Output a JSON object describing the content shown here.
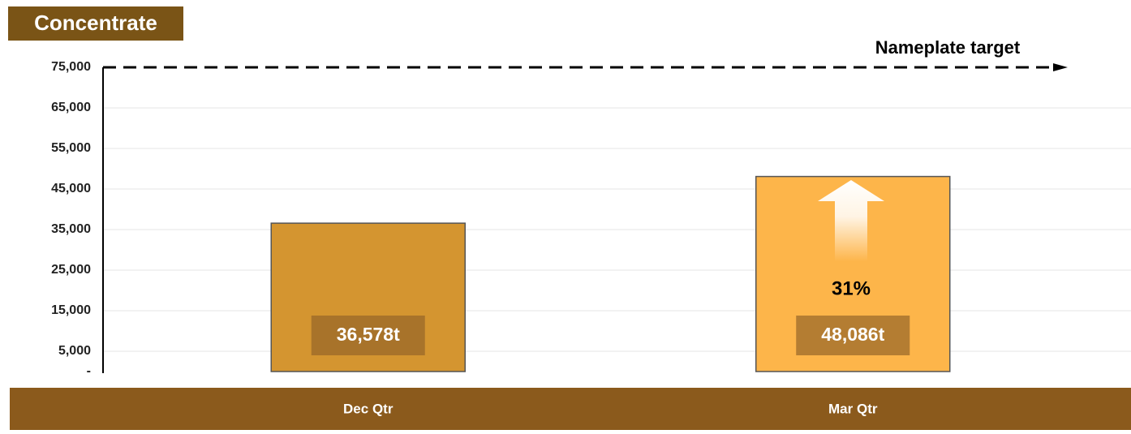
{
  "chart_data": {
    "type": "bar",
    "title": "Concentrate",
    "categories": [
      "Dec Qtr",
      "Mar Qtr"
    ],
    "values": [
      36578,
      48086
    ],
    "value_labels": [
      "36,578t",
      "48,086t"
    ],
    "colors": [
      "#d49530",
      "#fdb54a"
    ],
    "ylim": [
      0,
      75000
    ],
    "yticks": [
      {
        "value": 0,
        "label": "-"
      },
      {
        "value": 5000,
        "label": "5,000"
      },
      {
        "value": 15000,
        "label": "15,000"
      },
      {
        "value": 25000,
        "label": "25,000"
      },
      {
        "value": 35000,
        "label": "35,000"
      },
      {
        "value": 45000,
        "label": "45,000"
      },
      {
        "value": 55000,
        "label": "55,000"
      },
      {
        "value": 65000,
        "label": "65,000"
      },
      {
        "value": 75000,
        "label": "75,000"
      }
    ],
    "grid": true,
    "target_label": "Nameplate target",
    "annotations": [
      {
        "text": "31%"
      }
    ]
  }
}
